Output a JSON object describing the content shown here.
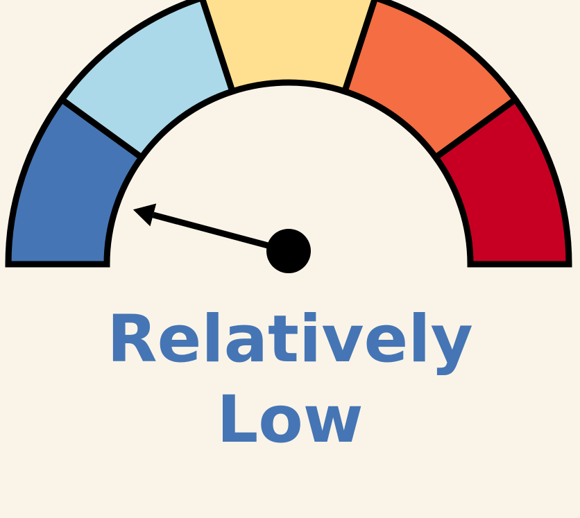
{
  "gauge": {
    "segments": [
      {
        "name": "segment-1",
        "color": "#4575B4"
      },
      {
        "name": "segment-2",
        "color": "#ABD9E9"
      },
      {
        "name": "segment-3",
        "color": "#FFE090"
      },
      {
        "name": "segment-4",
        "color": "#F46D43"
      },
      {
        "name": "segment-5",
        "color": "#C70023"
      }
    ],
    "level": 0.083,
    "needle_color": "#000000",
    "outline_color": "#000000",
    "background": "#FAF4E8"
  },
  "rating": {
    "line1": "Relatively",
    "line2": "Low",
    "color": "#4575B4"
  }
}
